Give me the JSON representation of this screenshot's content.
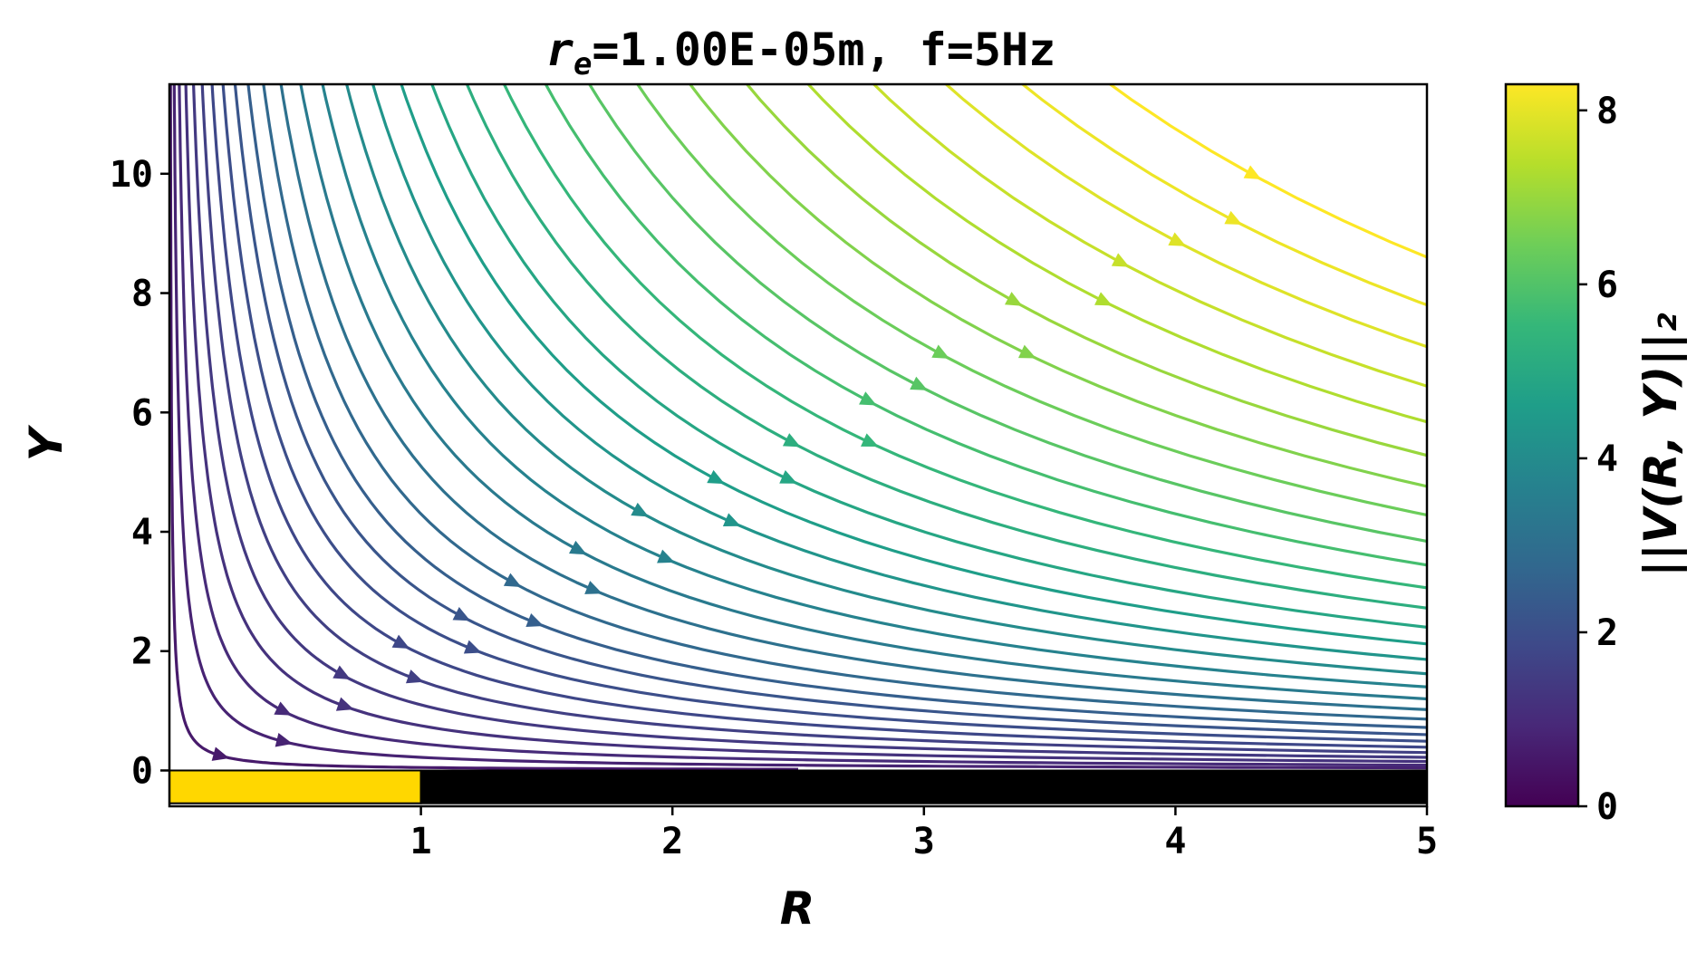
{
  "chart_data": {
    "type": "streamplot",
    "title_main": "r",
    "title_sub": "e",
    "title_rest": "=1.00E-05m, f=5Hz",
    "xlabel": "R",
    "ylabel": "Y",
    "xlim": [
      0,
      5
    ],
    "ylim": [
      -0.6,
      11.5
    ],
    "xticks": [
      1,
      2,
      3,
      4,
      5
    ],
    "xtick_labels": [
      "1",
      "2",
      "3",
      "4",
      "5"
    ],
    "yticks": [
      0,
      2,
      4,
      6,
      8,
      10
    ],
    "ytick_labels": [
      "0",
      "2",
      "4",
      "6",
      "8",
      "10"
    ],
    "grid": false,
    "colormap": "viridis",
    "colormap_stops": [
      "#440154",
      "#482878",
      "#3e4989",
      "#31688e",
      "#26828e",
      "#1f9e89",
      "#35b779",
      "#6ece58",
      "#b5de2b",
      "#fde725"
    ],
    "colorbar": {
      "label": "||V(R, Y)||₂",
      "range": [
        0,
        8.3
      ],
      "ticks": [
        0,
        2,
        4,
        6,
        8
      ],
      "tick_labels": [
        "0",
        "2",
        "4",
        "6",
        "8"
      ]
    },
    "boundaries": [
      {
        "name": "electrode",
        "x": [
          0,
          1
        ],
        "y": [
          -0.55,
          0
        ],
        "color": "#ffd700"
      },
      {
        "name": "insulator",
        "x": [
          1,
          5
        ],
        "y": [
          -0.55,
          0
        ],
        "color": "#000000"
      }
    ],
    "streamlines": [
      {
        "c": 0.05,
        "speed": 0.6,
        "arrow": 0.55
      },
      {
        "c": 0.22,
        "speed": 0.8,
        "arrow": 0.55
      },
      {
        "c": 0.45,
        "speed": 1.0,
        "arrow": 0.5
      },
      {
        "c": 0.75,
        "speed": 1.2,
        "arrow": 0.55
      },
      {
        "c": 1.1,
        "speed": 1.4,
        "arrow": 0.5
      },
      {
        "c": 1.5,
        "speed": 1.6,
        "arrow": 0.55
      },
      {
        "c": 1.95,
        "speed": 1.8,
        "arrow": 0.5
      },
      {
        "c": 2.45,
        "speed": 2.0,
        "arrow": 0.55
      },
      {
        "c": 3.0,
        "speed": 2.2,
        "arrow": 0.5
      },
      {
        "c": 3.6,
        "speed": 2.5,
        "arrow": 0.55
      },
      {
        "c": 4.3,
        "speed": 2.8,
        "arrow": 0.5
      },
      {
        "c": 5.1,
        "speed": 3.1,
        "arrow": 0.55
      },
      {
        "c": 6.0,
        "speed": 3.4,
        "arrow": 0.5
      },
      {
        "c": 7.0,
        "speed": 3.7,
        "arrow": 0.55
      },
      {
        "c": 8.1,
        "speed": 4.0,
        "arrow": 0.5
      },
      {
        "c": 9.3,
        "speed": 4.3,
        "arrow": 0.55
      },
      {
        "c": 10.6,
        "speed": 4.6,
        "arrow": 0.5
      },
      {
        "c": 12.0,
        "speed": 4.9,
        "arrow": 0.55
      },
      {
        "c": 13.6,
        "speed": 5.2,
        "arrow": 0.5
      },
      {
        "c": 15.3,
        "speed": 5.5,
        "arrow": 0.55
      },
      {
        "c": 17.2,
        "speed": 5.8,
        "arrow": 0.5
      },
      {
        "c": 19.2,
        "speed": 6.1,
        "arrow": 0.55
      },
      {
        "c": 21.4,
        "speed": 6.4,
        "arrow": 0.5
      },
      {
        "c": 23.8,
        "speed": 6.7,
        "arrow": 0.55
      },
      {
        "c": 26.4,
        "speed": 7.0,
        "arrow": 0.5
      },
      {
        "c": 29.2,
        "speed": 7.3,
        "arrow": 0.55
      },
      {
        "c": 32.2,
        "speed": 7.6,
        "arrow": 0.5
      },
      {
        "c": 35.5,
        "speed": 7.9,
        "arrow": 0.55
      },
      {
        "c": 39.0,
        "speed": 8.1,
        "arrow": 0.5
      },
      {
        "c": 43.0,
        "speed": 8.3,
        "arrow": 0.55
      }
    ]
  }
}
